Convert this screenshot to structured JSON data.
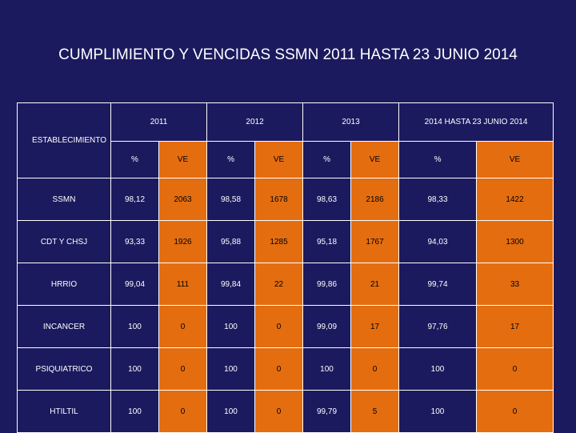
{
  "title": "CUMPLIMIENTO Y VENCIDAS SSMN 2011 HASTA 23 JUNIO 2014",
  "table": {
    "corner_label": "ESTABLECIMIENTO",
    "years": [
      "2011",
      "2012",
      "2013",
      "2014 HASTA 23 JUNIO 2014"
    ],
    "sub_headers": [
      "%",
      "VE",
      "%",
      "VE",
      "%",
      "VE",
      "%",
      "VE"
    ],
    "rows": [
      {
        "label": "SSMN",
        "cells": [
          "98,12",
          "2063",
          "98,58",
          "1678",
          "98,63",
          "2186",
          "98,33",
          "1422"
        ]
      },
      {
        "label": "CDT Y CHSJ",
        "cells": [
          "93,33",
          "1926",
          "95,88",
          "1285",
          "95,18",
          "1767",
          "94,03",
          "1300"
        ]
      },
      {
        "label": "HRRIO",
        "cells": [
          "99,04",
          "111",
          "99,84",
          "22",
          "99,86",
          "21",
          "99,74",
          "33"
        ]
      },
      {
        "label": "INCANCER",
        "cells": [
          "100",
          "0",
          "100",
          "0",
          "99,09",
          "17",
          "97,76",
          "17"
        ]
      },
      {
        "label": "PSIQUIATRICO",
        "cells": [
          "100",
          "0",
          "100",
          "0",
          "100",
          "0",
          "100",
          "0"
        ]
      },
      {
        "label": "HTILTIL",
        "cells": [
          "100",
          "0",
          "100",
          "0",
          "99,79",
          "5",
          "100",
          "0"
        ]
      }
    ]
  }
}
